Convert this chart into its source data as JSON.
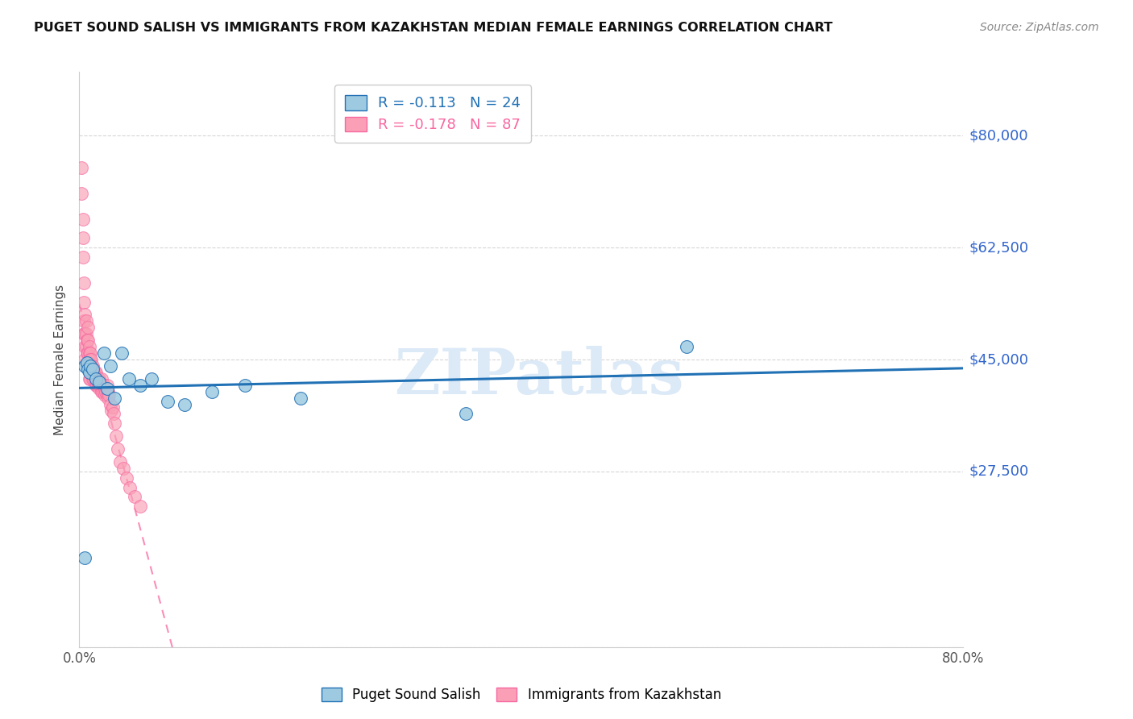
{
  "title": "PUGET SOUND SALISH VS IMMIGRANTS FROM KAZAKHSTAN MEDIAN FEMALE EARNINGS CORRELATION CHART",
  "source": "Source: ZipAtlas.com",
  "ylabel": "Median Female Earnings",
  "xlim": [
    0.0,
    0.8
  ],
  "ylim": [
    0,
    90000
  ],
  "yticks": [
    0,
    27500,
    45000,
    62500,
    80000
  ],
  "ytick_labels": [
    "",
    "$27,500",
    "$45,000",
    "$62,500",
    "$80,000"
  ],
  "xticks": [
    0.0,
    0.1,
    0.2,
    0.3,
    0.4,
    0.5,
    0.6,
    0.7,
    0.8
  ],
  "legend1_label": "R = -0.113   N = 24",
  "legend2_label": "R = -0.178   N = 87",
  "series1_name": "Puget Sound Salish",
  "series2_name": "Immigrants from Kazakhstan",
  "series1_color": "#9ecae1",
  "series2_color": "#fa9fb5",
  "trend1_color": "#2171b5",
  "trend2_color": "#f768a1",
  "watermark": "ZIPatlas",
  "watermark_color": "#dce9f7",
  "blue_scatter_x": [
    0.005,
    0.007,
    0.008,
    0.009,
    0.01,
    0.012,
    0.015,
    0.018,
    0.022,
    0.025,
    0.028,
    0.032,
    0.038,
    0.045,
    0.055,
    0.065,
    0.08,
    0.095,
    0.12,
    0.15,
    0.2,
    0.35,
    0.55,
    0.005
  ],
  "blue_scatter_y": [
    44000,
    44500,
    43500,
    43000,
    44000,
    43500,
    42000,
    41500,
    46000,
    40500,
    44000,
    39000,
    46000,
    42000,
    41000,
    42000,
    38500,
    38000,
    40000,
    41000,
    39000,
    36500,
    47000,
    14000
  ],
  "pink_scatter_x": [
    0.002,
    0.002,
    0.003,
    0.003,
    0.003,
    0.004,
    0.004,
    0.004,
    0.004,
    0.005,
    0.005,
    0.005,
    0.005,
    0.006,
    0.006,
    0.006,
    0.007,
    0.007,
    0.007,
    0.008,
    0.008,
    0.008,
    0.008,
    0.009,
    0.009,
    0.009,
    0.009,
    0.009,
    0.009,
    0.01,
    0.01,
    0.01,
    0.01,
    0.01,
    0.011,
    0.011,
    0.011,
    0.012,
    0.012,
    0.012,
    0.013,
    0.013,
    0.013,
    0.014,
    0.014,
    0.014,
    0.015,
    0.015,
    0.015,
    0.016,
    0.016,
    0.016,
    0.017,
    0.017,
    0.018,
    0.018,
    0.018,
    0.019,
    0.019,
    0.02,
    0.02,
    0.02,
    0.021,
    0.021,
    0.022,
    0.022,
    0.023,
    0.023,
    0.024,
    0.025,
    0.025,
    0.026,
    0.026,
    0.027,
    0.028,
    0.029,
    0.03,
    0.031,
    0.032,
    0.033,
    0.035,
    0.037,
    0.04,
    0.043,
    0.046,
    0.05,
    0.055
  ],
  "pink_scatter_y": [
    75000,
    71000,
    67000,
    64000,
    61000,
    57000,
    54000,
    51000,
    49000,
    52000,
    49000,
    47000,
    45000,
    51000,
    49000,
    47000,
    48000,
    46000,
    44000,
    50000,
    48000,
    46000,
    44000,
    47000,
    46000,
    45000,
    44000,
    43000,
    42000,
    46000,
    45000,
    44000,
    43000,
    42000,
    45000,
    44000,
    43000,
    44000,
    43000,
    42000,
    43500,
    43000,
    42000,
    43000,
    42500,
    42000,
    43000,
    42000,
    41000,
    42000,
    41500,
    41000,
    42000,
    41000,
    42000,
    41000,
    40500,
    41500,
    41000,
    42000,
    41000,
    40000,
    41000,
    40000,
    41000,
    40000,
    40500,
    39500,
    40000,
    41000,
    39500,
    40000,
    39000,
    39500,
    38000,
    37000,
    37500,
    36500,
    35000,
    33000,
    31000,
    29000,
    28000,
    26500,
    25000,
    23500,
    22000
  ]
}
